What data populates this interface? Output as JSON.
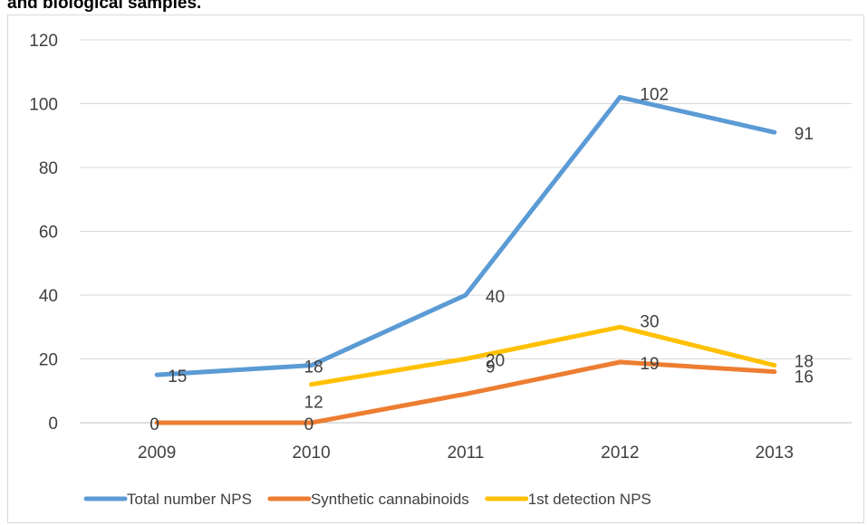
{
  "title": "and biological samples.",
  "chart_data": {
    "type": "line",
    "categories": [
      "2009",
      "2010",
      "2011",
      "2012",
      "2013"
    ],
    "ylim": [
      0,
      120
    ],
    "yticks": [
      0,
      20,
      40,
      60,
      80,
      100,
      120
    ],
    "grid": true,
    "legend_position": "bottom",
    "series": [
      {
        "name": "Total number  NPS",
        "color": "#5b9bd5",
        "values": [
          15,
          18,
          40,
          102,
          91
        ]
      },
      {
        "name": "Synthetic  cannabinoids",
        "color": "#ed7d31",
        "values": [
          0,
          0,
          9,
          19,
          16
        ]
      },
      {
        "name": "1st  detection NPS",
        "color": "#ffc000",
        "values": [
          null,
          12,
          20,
          30,
          18
        ]
      }
    ]
  }
}
